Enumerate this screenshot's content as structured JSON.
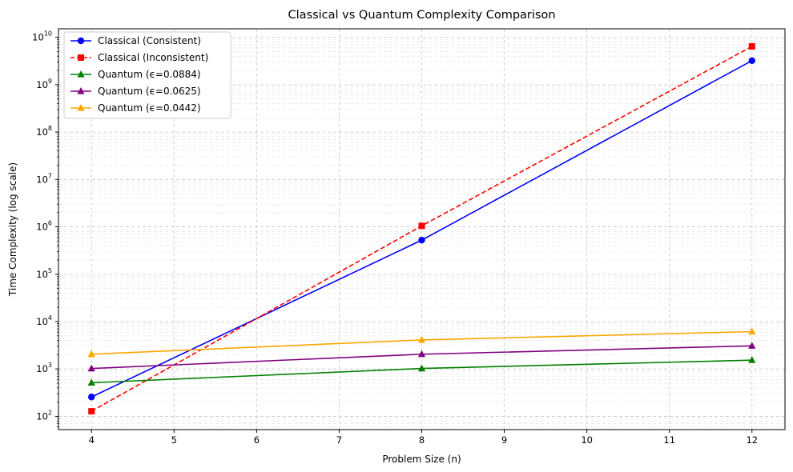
{
  "chart_data": {
    "type": "line",
    "title": "Classical vs Quantum Complexity Comparison",
    "xlabel": "Problem Size (n)",
    "ylabel": "Time Complexity (log scale)",
    "yscale": "log",
    "xlim": [
      3.6,
      12.4
    ],
    "ylim_log10": [
      1.72,
      10.18
    ],
    "x_ticks": [
      "4",
      "5",
      "6",
      "7",
      "8",
      "9",
      "10",
      "11",
      "12"
    ],
    "y_ticks": [
      {
        "base": "10",
        "exp": "2"
      },
      {
        "base": "10",
        "exp": "3"
      },
      {
        "base": "10",
        "exp": "4"
      },
      {
        "base": "10",
        "exp": "5"
      },
      {
        "base": "10",
        "exp": "6"
      },
      {
        "base": "10",
        "exp": "7"
      },
      {
        "base": "10",
        "exp": "8"
      },
      {
        "base": "10",
        "exp": "9"
      },
      {
        "base": "10",
        "exp": "10"
      }
    ],
    "grid": true,
    "legend_position": "top-left",
    "x": [
      4,
      8,
      12
    ],
    "series": [
      {
        "name": "Classical (Consistent)",
        "values": [
          256,
          524288,
          3221225472
        ],
        "color": "#0000ff",
        "marker": "circle",
        "dashed": false
      },
      {
        "name": "Classical (Inconsistent)",
        "values": [
          128,
          1048576,
          6442450944
        ],
        "color": "#ff0000",
        "marker": "square",
        "dashed": true
      },
      {
        "name": "Quantum (ϵ=0.0884)",
        "values": [
          512,
          1024,
          1536
        ],
        "color": "#008000",
        "marker": "triangle",
        "dashed": false
      },
      {
        "name": "Quantum (ϵ=0.0625)",
        "values": [
          1024,
          2048,
          3072
        ],
        "color": "#800080",
        "marker": "triangle",
        "dashed": false
      },
      {
        "name": "Quantum (ϵ=0.0442)",
        "values": [
          2048,
          4096,
          6144
        ],
        "color": "#ffa500",
        "marker": "triangle",
        "dashed": false
      }
    ]
  }
}
